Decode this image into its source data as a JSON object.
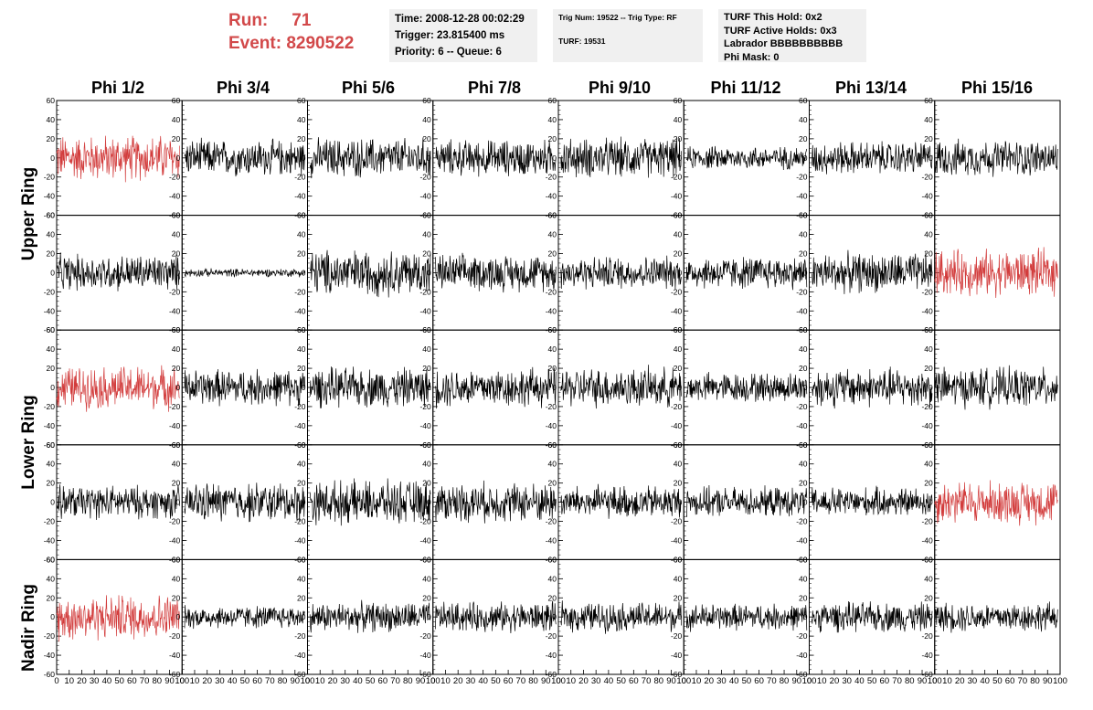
{
  "run": {
    "run_label": "Run:",
    "run_value": "71",
    "event_label": "Event:",
    "event_value": "8290522"
  },
  "header": {
    "time": "Time: 2008-12-28 00:02:29",
    "trigger": "Trigger: 23.815400 ms",
    "priority": "Priority: 6 -- Queue: 6",
    "trig_num": "Trig Num: 19522 -- Trig Type: RF",
    "turf": "TURF: 19531",
    "turf_hold": "TURF This Hold: 0x2",
    "turf_active": "TURF Active Holds: 0x3",
    "labrador": "Labrador BBBBBBBBBB",
    "phi_mask": "Phi Mask: 0"
  },
  "columns": [
    "Phi 1/2",
    "Phi 3/4",
    "Phi 5/6",
    "Phi 7/8",
    "Phi 9/10",
    "Phi 11/12",
    "Phi 13/14",
    "Phi 15/16"
  ],
  "ring_labels": [
    "Upper Ring",
    "Lower Ring",
    "Nadir Ring"
  ],
  "colors": {
    "highlight": "#d23c3c",
    "trace": "#000000",
    "run_text": "#d2494a",
    "info_bg": "#f0f0f0"
  },
  "chart_data": {
    "type": "line",
    "grid": false,
    "xlim": [
      0,
      100
    ],
    "ylim": [
      -60,
      60
    ],
    "x_ticks": [
      "0",
      "10",
      "20",
      "30",
      "40",
      "50",
      "60",
      "70",
      "80",
      "90",
      "100"
    ],
    "y_ticks": [
      "60",
      "40",
      "20",
      "0",
      "-20",
      "-40",
      "-60"
    ],
    "x_tick_labels_row": "0 10 20 30 40 50 60 70 80 90 100",
    "panels_rows": 5,
    "panels_cols": 8,
    "panel_amplitudes": [
      [
        28,
        22,
        24,
        22,
        24,
        14,
        20,
        22
      ],
      [
        22,
        5,
        28,
        22,
        20,
        20,
        24,
        28
      ],
      [
        26,
        22,
        24,
        24,
        24,
        18,
        24,
        24
      ],
      [
        20,
        24,
        26,
        24,
        20,
        18,
        18,
        26
      ],
      [
        28,
        14,
        18,
        18,
        18,
        16,
        18,
        18
      ]
    ],
    "panel_highlight": [
      [
        true,
        false,
        false,
        false,
        false,
        false,
        false,
        false
      ],
      [
        false,
        false,
        false,
        false,
        false,
        false,
        false,
        true
      ],
      [
        true,
        false,
        false,
        false,
        false,
        false,
        false,
        false
      ],
      [
        false,
        false,
        false,
        false,
        false,
        false,
        false,
        true
      ],
      [
        true,
        false,
        false,
        false,
        false,
        false,
        false,
        false
      ]
    ]
  }
}
